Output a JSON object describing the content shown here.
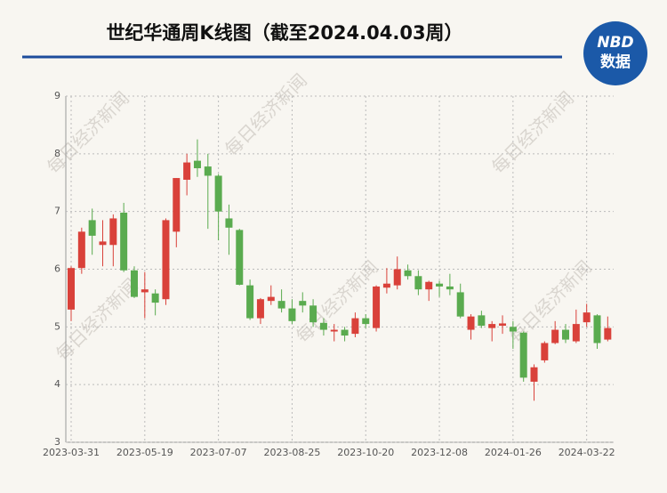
{
  "chart_data": {
    "type": "candlestick",
    "title": "世纪华通周K线图（截至2024.04.03周）",
    "logo": {
      "top": "NBD",
      "bottom": "数据"
    },
    "watermark": "每日经济新闻",
    "categories": [
      "2023-03-31",
      null,
      null,
      null,
      null,
      null,
      null,
      "2023-05-19",
      null,
      null,
      null,
      null,
      null,
      null,
      "2023-07-07",
      null,
      null,
      null,
      null,
      null,
      null,
      "2023-08-25",
      null,
      null,
      null,
      null,
      null,
      null,
      "2023-10-20",
      null,
      null,
      null,
      null,
      null,
      null,
      "2023-12-08",
      null,
      null,
      null,
      null,
      null,
      null,
      "2024-01-26",
      null,
      null,
      null,
      null,
      null,
      null,
      "2024-03-22",
      null,
      null
    ],
    "open": [
      5.3,
      6.02,
      6.85,
      6.42,
      6.42,
      6.98,
      5.98,
      5.6,
      5.58,
      5.48,
      6.65,
      7.55,
      7.88,
      7.78,
      7.62,
      6.88,
      6.68,
      5.72,
      5.15,
      5.45,
      5.45,
      5.32,
      5.45,
      5.37,
      5.07,
      4.92,
      4.95,
      4.88,
      5.15,
      4.98,
      5.68,
      5.72,
      5.98,
      5.88,
      5.65,
      5.75,
      5.7,
      5.6,
      4.95,
      5.2,
      4.98,
      5.02,
      5.0,
      4.9,
      4.05,
      4.42,
      4.72,
      4.95,
      4.75,
      5.08,
      5.2,
      4.78
    ],
    "high": [
      6.05,
      6.72,
      7.05,
      6.85,
      6.95,
      7.15,
      6.05,
      5.95,
      5.65,
      6.88,
      7.58,
      8.0,
      8.25,
      8.0,
      7.65,
      7.12,
      6.7,
      5.82,
      5.5,
      5.72,
      5.65,
      5.48,
      5.6,
      5.48,
      5.15,
      5.05,
      5.0,
      5.25,
      5.22,
      5.72,
      6.02,
      6.22,
      6.08,
      5.98,
      5.8,
      5.8,
      5.92,
      5.75,
      5.22,
      5.28,
      5.1,
      5.2,
      5.1,
      4.92,
      4.35,
      4.75,
      5.1,
      5.05,
      5.3,
      5.4,
      5.22,
      5.18
    ],
    "low": [
      5.1,
      5.92,
      6.25,
      6.05,
      6.05,
      5.95,
      5.5,
      5.15,
      5.2,
      5.38,
      6.38,
      7.28,
      7.6,
      6.7,
      6.5,
      6.25,
      5.72,
      5.12,
      5.05,
      5.38,
      5.25,
      5.05,
      5.25,
      5.0,
      4.85,
      4.75,
      4.75,
      4.82,
      4.98,
      4.92,
      5.58,
      5.65,
      5.82,
      5.55,
      5.45,
      5.52,
      5.55,
      5.15,
      4.78,
      4.98,
      4.75,
      4.88,
      4.62,
      4.05,
      3.72,
      4.38,
      4.7,
      4.72,
      4.72,
      5.0,
      4.62,
      4.75
    ],
    "close": [
      6.02,
      6.65,
      6.58,
      6.48,
      6.88,
      5.98,
      5.52,
      5.65,
      5.42,
      6.85,
      7.58,
      7.85,
      7.75,
      7.62,
      7.0,
      6.72,
      5.73,
      5.15,
      5.48,
      5.52,
      5.32,
      5.1,
      5.37,
      5.08,
      4.95,
      4.95,
      4.85,
      5.15,
      5.05,
      5.7,
      5.75,
      6.0,
      5.88,
      5.65,
      5.78,
      5.7,
      5.65,
      5.18,
      5.18,
      5.02,
      5.05,
      5.06,
      4.92,
      4.12,
      4.3,
      4.72,
      4.95,
      4.78,
      5.05,
      5.25,
      4.72,
      4.98
    ],
    "up_color": "#d9413a",
    "down_color": "#5aab4f",
    "ylim": [
      3,
      9
    ],
    "yticks": [
      3,
      4,
      5,
      6,
      7,
      8,
      9
    ],
    "grid": true
  }
}
